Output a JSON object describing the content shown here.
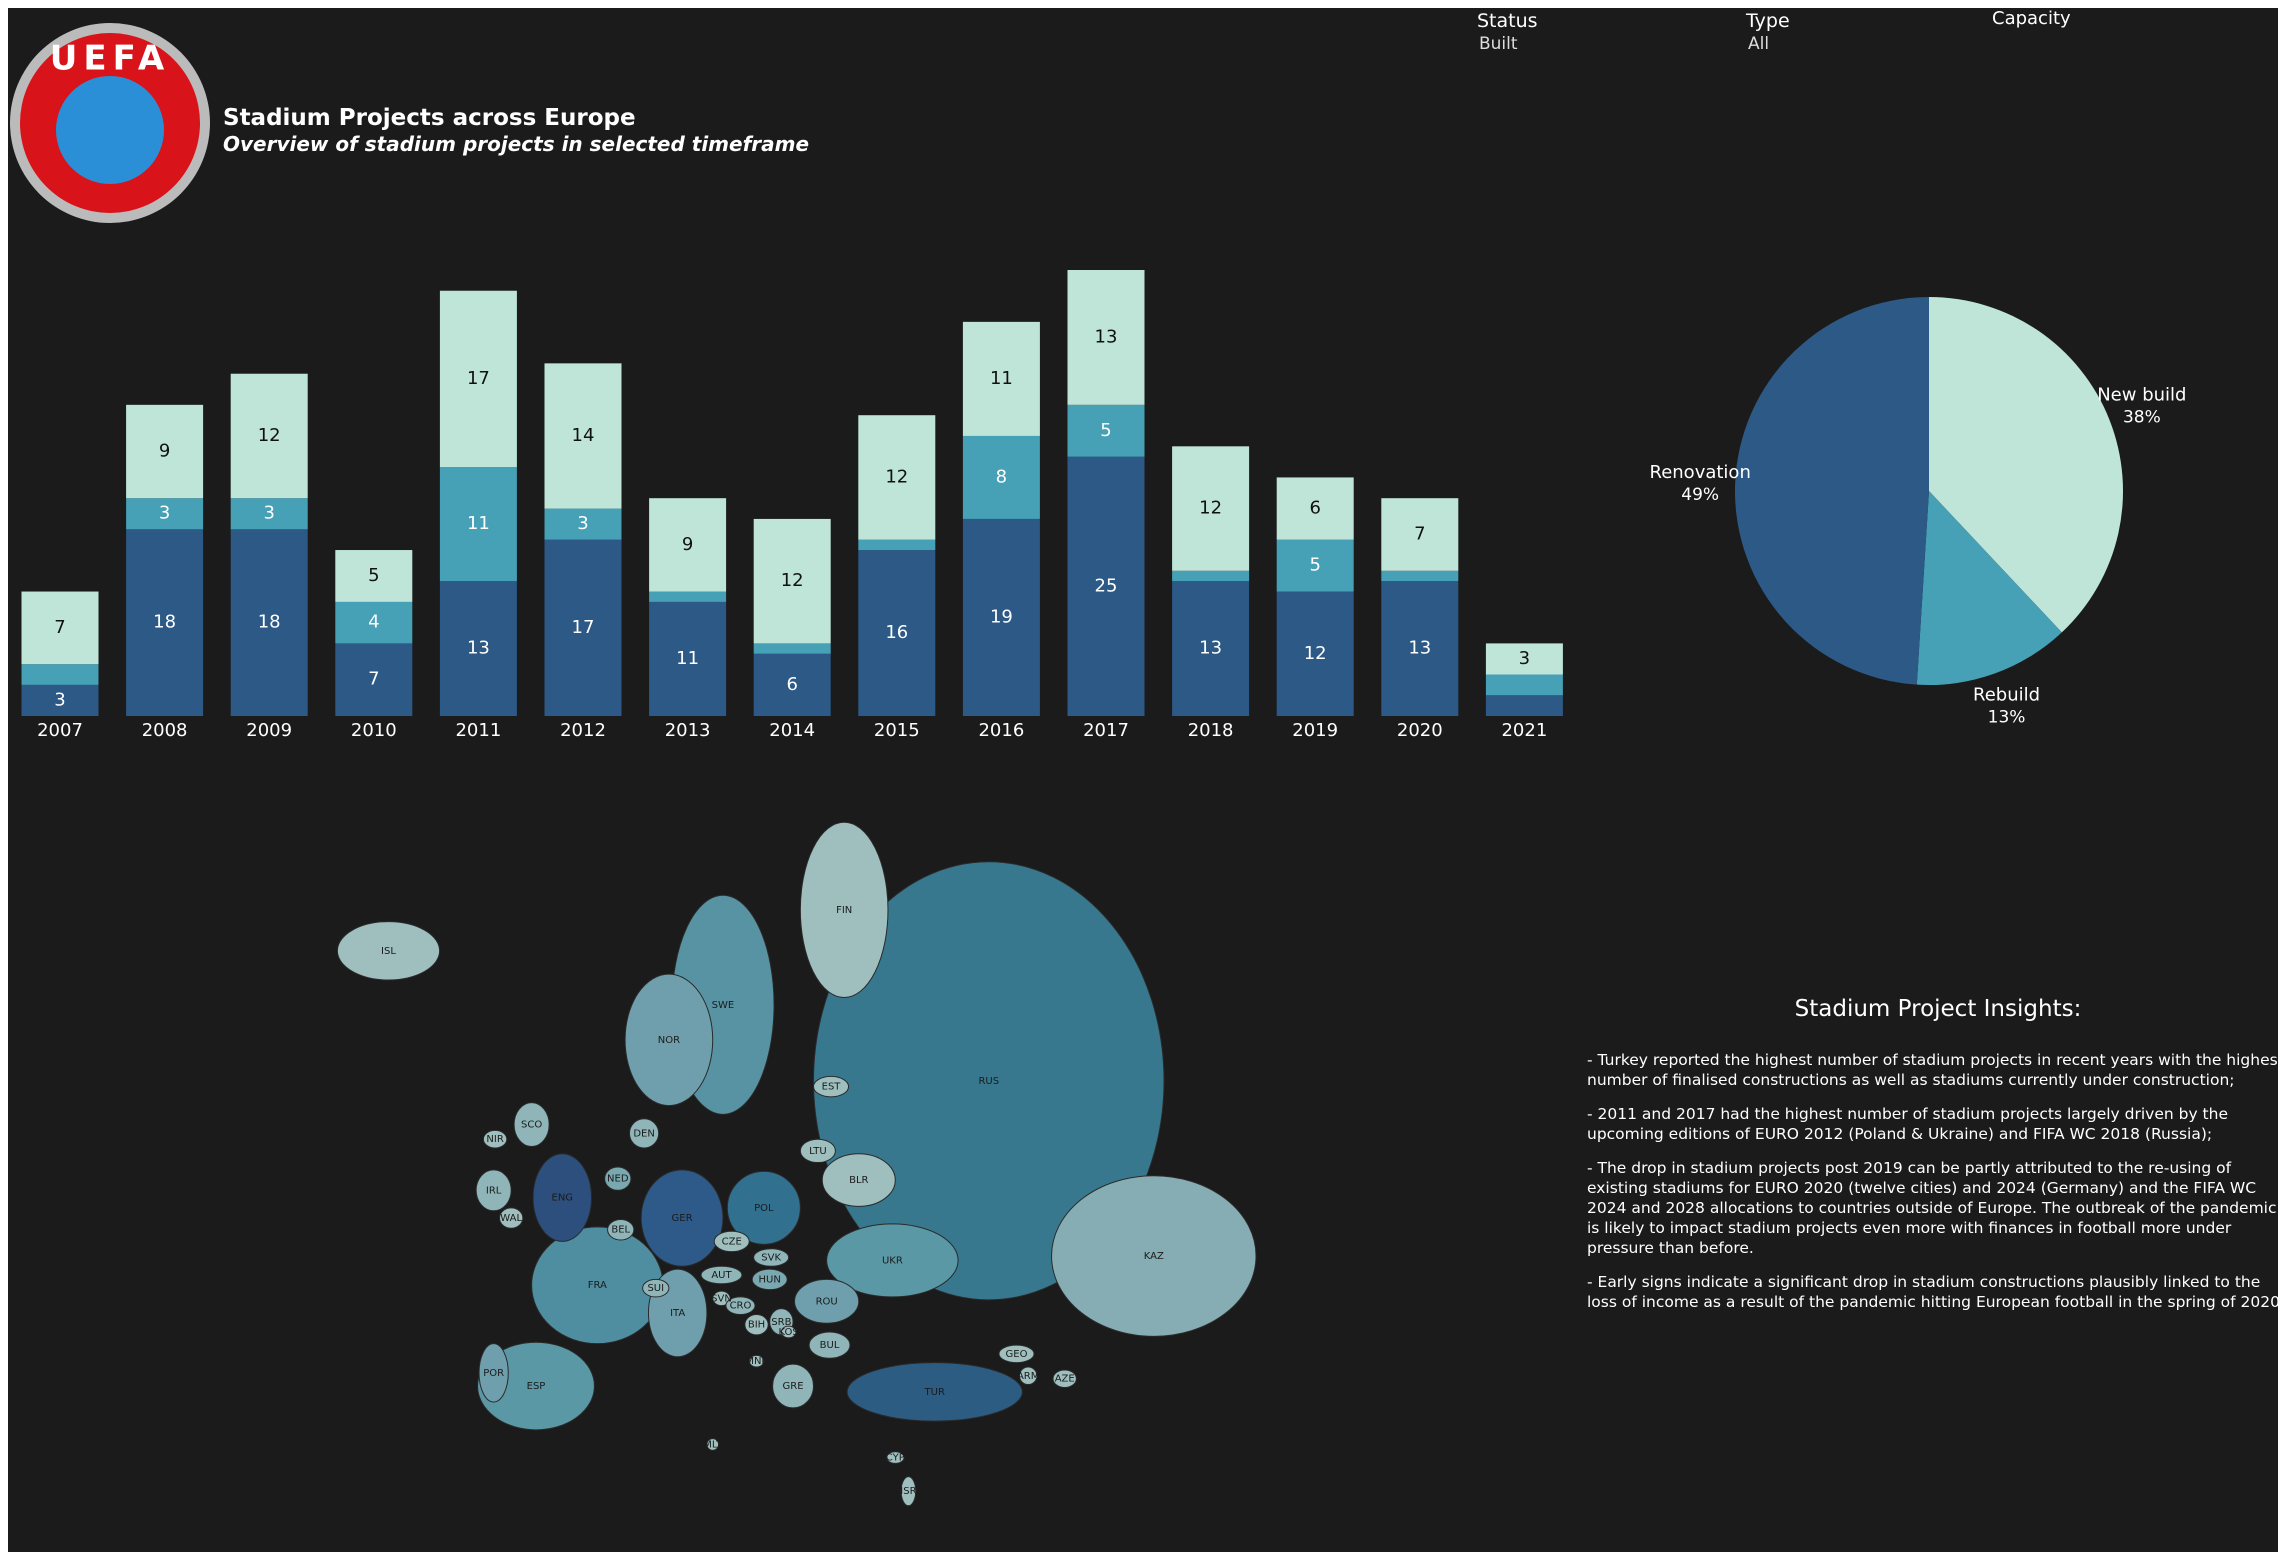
{
  "header": {
    "logo_text": "UEFA",
    "title": "Stadium Projects across Europe",
    "subtitle": "Overview of stadium projects in selected timeframe"
  },
  "filters": [
    {
      "label": "Status",
      "value": "Built"
    },
    {
      "label": "Type",
      "value": "All"
    },
    {
      "label": "Capacity"
    }
  ],
  "chart_data": [
    {
      "type": "bar",
      "stacked": true,
      "categories": [
        "2007",
        "2008",
        "2009",
        "2010",
        "2011",
        "2012",
        "2013",
        "2014",
        "2015",
        "2016",
        "2017",
        "2018",
        "2019",
        "2020",
        "2021"
      ],
      "series": [
        {
          "name": "Renovation",
          "color": "#2c5985",
          "values": [
            3,
            18,
            18,
            7,
            13,
            17,
            11,
            6,
            16,
            19,
            25,
            13,
            12,
            13,
            2
          ]
        },
        {
          "name": "Rebuild",
          "color": "#46a0b6",
          "values": [
            2,
            3,
            3,
            4,
            11,
            3,
            1,
            1,
            1,
            8,
            5,
            1,
            5,
            1,
            2
          ]
        },
        {
          "name": "New build",
          "color": "#bfe5d9",
          "values": [
            7,
            9,
            12,
            5,
            17,
            14,
            9,
            12,
            12,
            11,
            13,
            12,
            6,
            7,
            3
          ]
        }
      ]
    },
    {
      "type": "pie",
      "categories": [
        "New build",
        "Rebuild",
        "Renovation"
      ],
      "values": [
        38,
        13,
        49
      ],
      "value_labels": [
        "38%",
        "13%",
        "49%"
      ],
      "colors": [
        "#bfe5d9",
        "#46a0b6",
        "#2c5985"
      ]
    },
    {
      "type": "map",
      "categories": [
        "RUS",
        "KAZ",
        "UKR",
        "FIN",
        "SWE",
        "NOR",
        "ISL",
        "TUR",
        "FRA",
        "ESP",
        "POR",
        "GER",
        "POL",
        "ITA",
        "ENG",
        "SCO",
        "NIR",
        "IRL",
        "WAL",
        "DEN",
        "NED",
        "BEL",
        "EST",
        "LTU",
        "BLR",
        "CZE",
        "SVK",
        "AUT",
        "HUN",
        "SUI",
        "SVN",
        "CRO",
        "ROU",
        "SRB",
        "BIH",
        "KOS",
        "BUL",
        "GEO",
        "MNE",
        "ARM",
        "AZE",
        "GRE",
        "MLT",
        "CYP",
        "ISR"
      ],
      "colors": [
        "#37788f",
        "#86adb3",
        "#5b98a6",
        "#9fbfbf",
        "#5793a3",
        "#6f9fad",
        "#9fbfbf",
        "#2d5c82",
        "#4f8ea1",
        "#5b98a6",
        "#6f9fad",
        "#2e5a8a",
        "#32708f",
        "#6f9fad",
        "#2c4f7e",
        "#8fb5b8",
        "#9fbfbf",
        "#8fb5b8",
        "#9fbfbf",
        "#8fb5b8",
        "#7aa8b0",
        "#8fb5b8",
        "#9fbfbf",
        "#9fbfbf",
        "#9fbfbf",
        "#9fbfbf",
        "#8fb5b8",
        "#8fb5b8",
        "#7aa8b0",
        "#8fb5b8",
        "#9fbfbf",
        "#8fb5b8",
        "#6f9fad",
        "#8fb5b8",
        "#9fbfbf",
        "#9fbfbf",
        "#8fb5b8",
        "#9fbfbf",
        "#9fbfbf",
        "#9fbfbf",
        "#9fbfbf",
        "#8fb5b8",
        "#9fbfbf",
        "#9fbfbf",
        "#9fbfbf"
      ]
    }
  ],
  "insights": {
    "title": "Stadium Project Insights:",
    "items": [
      "- Turkey reported the highest number of stadium projects in recent years with the highest number of finalised constructions as well as stadiums currently under construction;",
      "- 2011 and 2017 had the highest number of stadium projects largely driven by the upcoming editions of EURO 2012 (Poland & Ukraine) and FIFA WC 2018 (Russia);",
      "- The drop in stadium projects post 2019 can be partly attributed to the re-using of existing stadiums for EURO 2020 (twelve cities) and 2024 (Germany) and the FIFA WC 2024 and 2028 allocations to countries outside of Europe. The outbreak of the pandemic is likely to impact stadium projects even more with finances in football more under pressure than before.",
      "- Early signs indicate a significant drop in stadium constructions plausibly linked to the loss of income as a result of the pandemic hitting European football in the spring of 2020."
    ]
  }
}
